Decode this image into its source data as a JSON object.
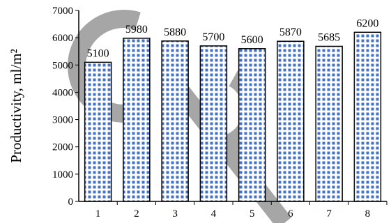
{
  "chart_data": {
    "type": "bar",
    "categories": [
      "1",
      "2",
      "3",
      "4",
      "5",
      "6",
      "7",
      "8"
    ],
    "values": [
      5100,
      5980,
      5880,
      5700,
      5600,
      5870,
      5685,
      6200
    ],
    "data_labels": [
      "5100",
      "5980",
      "5880",
      "5700",
      "5600",
      "5870",
      "5685",
      "6200"
    ],
    "xlabel": "",
    "ylabel": "Productivity, ml/m²",
    "ylim": [
      0,
      7000
    ],
    "y_ticks": [
      0,
      1000,
      2000,
      3000,
      4000,
      5000,
      6000,
      7000
    ],
    "y_tick_labels": [
      "0",
      "1000",
      "2000",
      "3000",
      "4000",
      "5000",
      "6000",
      "7000"
    ],
    "grid": false,
    "bar_pattern": "blue squares on white, black outline",
    "colors": {
      "bar_fill_pattern": "#4472c4",
      "bar_outline": "#000000",
      "watermark": "#808080"
    }
  }
}
